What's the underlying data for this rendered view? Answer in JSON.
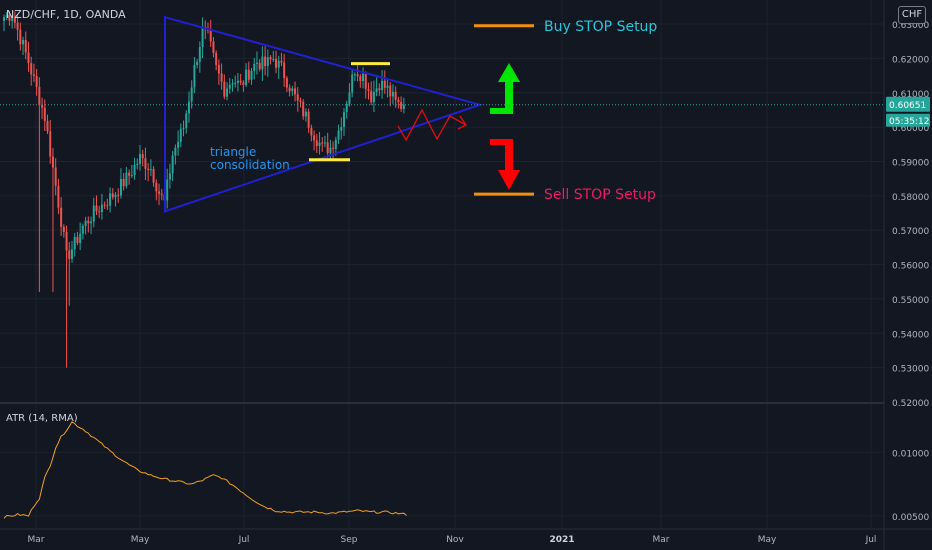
{
  "header": {
    "symbol_title": "NZD/CHF, 1D, OANDA",
    "currency_button": "CHF"
  },
  "colors": {
    "background": "#131722",
    "grid": "#1e222d",
    "bull_candle": "#26a69a",
    "bear_candle": "#ef5350",
    "triangle": "#2020d0",
    "projection": "#e01010",
    "highlight": "#ffeb3b",
    "setup_level": "#f0900e",
    "buy_text": "#26c6da",
    "sell_text": "#e91e63",
    "buy_arrow": "#00e600",
    "sell_arrow": "#ff0000",
    "atr_line": "#f0a020",
    "price_label": "#26a69a",
    "annotation_text": "#2196f3"
  },
  "price_axis": {
    "ticks": [
      "0.63000",
      "0.62000",
      "0.61000",
      "0.60000",
      "0.59000",
      "0.58000",
      "0.57000",
      "0.56000",
      "0.55000",
      "0.54000",
      "0.53000",
      "0.52000"
    ],
    "current_price": "0.60651",
    "countdown": "05:35:12"
  },
  "time_axis": {
    "ticks": [
      "Mar",
      "May",
      "Jul",
      "Sep",
      "Nov",
      "2021",
      "Mar",
      "May",
      "Jul"
    ]
  },
  "annotations": {
    "triangle_label_line1": "triangle",
    "triangle_label_line2": "consolidation",
    "buy_setup": "Buy STOP Setup",
    "sell_setup": "Sell STOP Setup"
  },
  "atr_pane": {
    "title": "ATR (14, RMA)",
    "ticks": [
      "0.01000",
      "0.00500"
    ]
  },
  "chart_data": [
    {
      "type": "candlestick",
      "title": "NZD/CHF, 1D, OANDA",
      "ylim": [
        0.52,
        0.637
      ],
      "x_ticks": [
        "Mar",
        "May",
        "Jul",
        "Sep",
        "Nov",
        "2021",
        "Mar",
        "May",
        "Jul"
      ],
      "anchors": [
        [
          0,
          0.632
        ],
        [
          3,
          0.633
        ],
        [
          6,
          0.626
        ],
        [
          9,
          0.619
        ],
        [
          12,
          0.611
        ],
        [
          15,
          0.603
        ],
        [
          18,
          0.588
        ],
        [
          21,
          0.573
        ],
        [
          23,
          0.562
        ],
        [
          26,
          0.566
        ],
        [
          29,
          0.571
        ],
        [
          33,
          0.575
        ],
        [
          37,
          0.578
        ],
        [
          41,
          0.581
        ],
        [
          46,
          0.586
        ],
        [
          50,
          0.591
        ],
        [
          54,
          0.588
        ],
        [
          57,
          0.581
        ],
        [
          59,
          0.578
        ],
        [
          62,
          0.592
        ],
        [
          66,
          0.6
        ],
        [
          70,
          0.617
        ],
        [
          73,
          0.628
        ],
        [
          75,
          0.626
        ],
        [
          78,
          0.617
        ],
        [
          81,
          0.611
        ],
        [
          84,
          0.614
        ],
        [
          87,
          0.612
        ],
        [
          90,
          0.616
        ],
        [
          93,
          0.619
        ],
        [
          96,
          0.618
        ],
        [
          99,
          0.62
        ],
        [
          102,
          0.617
        ],
        [
          105,
          0.612
        ],
        [
          108,
          0.607
        ],
        [
          111,
          0.603
        ],
        [
          114,
          0.598
        ],
        [
          117,
          0.594
        ],
        [
          120,
          0.594
        ],
        [
          123,
          0.599
        ],
        [
          126,
          0.608
        ],
        [
          129,
          0.617
        ],
        [
          132,
          0.615
        ],
        [
          135,
          0.609
        ],
        [
          138,
          0.613
        ],
        [
          141,
          0.611
        ],
        [
          144,
          0.607
        ],
        [
          147,
          0.606
        ]
      ],
      "spikes": [
        {
          "index": 13,
          "low": 0.552
        },
        {
          "index": 18,
          "low": 0.552
        },
        {
          "index": 23,
          "low": 0.53
        },
        {
          "index": 24,
          "low": 0.548
        }
      ],
      "last_price": 0.60651,
      "triangle": {
        "upper_line": [
          [
            "May",
            0.632
          ],
          [
            "Nov",
            0.6065
          ]
        ],
        "lower_line": [
          [
            "May",
            0.5755
          ],
          [
            "Nov",
            0.6065
          ]
        ],
        "left_edge": [
          [
            0.632
          ],
          [
            0.5755
          ]
        ]
      },
      "setup_levels": {
        "buy_stop": 0.6295,
        "sell_stop": 0.5805
      },
      "highlight_levels": {
        "top": 0.6185,
        "bottom": 0.5905
      }
    },
    {
      "type": "line",
      "title": "ATR (14, RMA)",
      "ylim": [
        0.0042,
        0.0135
      ],
      "y_ticks": [
        "0.01000",
        "0.00500"
      ],
      "anchors": [
        [
          0,
          0.0049
        ],
        [
          5,
          0.0051
        ],
        [
          9,
          0.005
        ],
        [
          11,
          0.0058
        ],
        [
          13,
          0.0064
        ],
        [
          15,
          0.008
        ],
        [
          17,
          0.009
        ],
        [
          19,
          0.0104
        ],
        [
          21,
          0.0112
        ],
        [
          23,
          0.0118
        ],
        [
          25,
          0.0124
        ],
        [
          27,
          0.0121
        ],
        [
          30,
          0.0117
        ],
        [
          34,
          0.011
        ],
        [
          39,
          0.0101
        ],
        [
          44,
          0.0093
        ],
        [
          49,
          0.0086
        ],
        [
          54,
          0.0082
        ],
        [
          59,
          0.0079
        ],
        [
          64,
          0.0077
        ],
        [
          69,
          0.0075
        ],
        [
          73,
          0.0078
        ],
        [
          77,
          0.0082
        ],
        [
          80,
          0.008
        ],
        [
          85,
          0.0073
        ],
        [
          90,
          0.0065
        ],
        [
          95,
          0.0058
        ],
        [
          100,
          0.0054
        ],
        [
          105,
          0.0053
        ],
        [
          110,
          0.0053
        ],
        [
          115,
          0.0053
        ],
        [
          120,
          0.0052
        ],
        [
          125,
          0.0053
        ],
        [
          130,
          0.0054
        ],
        [
          135,
          0.0053
        ],
        [
          140,
          0.0053
        ],
        [
          145,
          0.0052
        ],
        [
          148,
          0.0051
        ]
      ]
    }
  ]
}
